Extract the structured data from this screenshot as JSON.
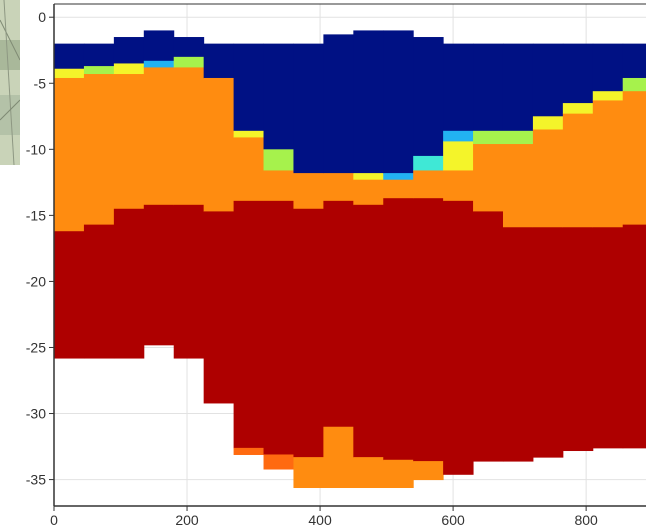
{
  "chart_data": {
    "type": "heatmap",
    "title": "",
    "xlabel": "",
    "ylabel": "",
    "xlim": [
      0,
      890
    ],
    "ylim": [
      -37,
      1
    ],
    "grid": true,
    "x_ticks": [
      0,
      200,
      400,
      600,
      800
    ],
    "y_ticks": [
      0,
      -5,
      -10,
      -15,
      -20,
      -25,
      -30,
      -35
    ],
    "column_width": 45,
    "color_scale": {
      "deep_blue": "#001184",
      "light_blue": "#22B2F2",
      "cyan": "#3FE8D6",
      "green": "#A6F24C",
      "yellow": "#F4F42A",
      "orange": "#FF8C10",
      "dark_orange": "#FF6A10",
      "dark_red": "#AE0000"
    },
    "columns": [
      {
        "x": 0,
        "bands": [
          {
            "from": -2,
            "to": -3.9,
            "color": "deep_blue"
          },
          {
            "from": -3.9,
            "to": -4.6,
            "color": "yellow"
          },
          {
            "from": -4.6,
            "to": -16.2,
            "color": "orange"
          },
          {
            "from": -16.2,
            "to": -25.8,
            "color": "dark_red"
          }
        ]
      },
      {
        "x": 45,
        "bands": [
          {
            "from": -2,
            "to": -3.7,
            "color": "deep_blue"
          },
          {
            "from": -3.7,
            "to": -4.3,
            "color": "green"
          },
          {
            "from": -4.3,
            "to": -15.7,
            "color": "orange"
          },
          {
            "from": -15.7,
            "to": -25.8,
            "color": "dark_red"
          }
        ]
      },
      {
        "x": 90,
        "bands": [
          {
            "from": -1.5,
            "to": -3.5,
            "color": "deep_blue"
          },
          {
            "from": -3.5,
            "to": -4.3,
            "color": "yellow"
          },
          {
            "from": -4.3,
            "to": -14.5,
            "color": "orange"
          },
          {
            "from": -14.5,
            "to": -25.8,
            "color": "dark_red"
          }
        ]
      },
      {
        "x": 135,
        "bands": [
          {
            "from": -1.0,
            "to": -3.3,
            "color": "deep_blue"
          },
          {
            "from": -3.3,
            "to": -3.8,
            "color": "light_blue"
          },
          {
            "from": -3.8,
            "to": -14.2,
            "color": "orange"
          },
          {
            "from": -14.2,
            "to": -24.8,
            "color": "dark_red"
          }
        ]
      },
      {
        "x": 180,
        "bands": [
          {
            "from": -1.5,
            "to": -3.0,
            "color": "deep_blue"
          },
          {
            "from": -3.0,
            "to": -3.8,
            "color": "green"
          },
          {
            "from": -3.8,
            "to": -14.2,
            "color": "orange"
          },
          {
            "from": -14.2,
            "to": -25.8,
            "color": "dark_red"
          }
        ]
      },
      {
        "x": 225,
        "bands": [
          {
            "from": -2,
            "to": -4.6,
            "color": "deep_blue"
          },
          {
            "from": -4.6,
            "to": -14.7,
            "color": "orange"
          },
          {
            "from": -14.7,
            "to": -29.2,
            "color": "dark_red"
          }
        ]
      },
      {
        "x": 270,
        "bands": [
          {
            "from": -2,
            "to": -8.6,
            "color": "deep_blue"
          },
          {
            "from": -8.6,
            "to": -9.1,
            "color": "yellow"
          },
          {
            "from": -9.1,
            "to": -13.9,
            "color": "orange"
          },
          {
            "from": -13.9,
            "to": -32.6,
            "color": "dark_red"
          },
          {
            "from": -32.6,
            "to": -33.1,
            "color": "dark_orange"
          }
        ]
      },
      {
        "x": 315,
        "bands": [
          {
            "from": -2,
            "to": -10.0,
            "color": "deep_blue"
          },
          {
            "from": -10.0,
            "to": -11.6,
            "color": "green"
          },
          {
            "from": -11.6,
            "to": -13.9,
            "color": "orange"
          },
          {
            "from": -13.9,
            "to": -33.1,
            "color": "dark_red"
          },
          {
            "from": -33.1,
            "to": -34.2,
            "color": "dark_orange"
          }
        ]
      },
      {
        "x": 360,
        "bands": [
          {
            "from": -2,
            "to": -11.8,
            "color": "deep_blue"
          },
          {
            "from": -11.8,
            "to": -14.5,
            "color": "orange"
          },
          {
            "from": -14.5,
            "to": -33.3,
            "color": "dark_red"
          },
          {
            "from": -33.3,
            "to": -35.6,
            "color": "orange"
          }
        ]
      },
      {
        "x": 405,
        "bands": [
          {
            "from": -1.3,
            "to": -11.8,
            "color": "deep_blue"
          },
          {
            "from": -11.8,
            "to": -13.9,
            "color": "orange"
          },
          {
            "from": -13.9,
            "to": -31.0,
            "color": "dark_red"
          },
          {
            "from": -31.0,
            "to": -35.6,
            "color": "orange"
          }
        ]
      },
      {
        "x": 450,
        "bands": [
          {
            "from": -1.0,
            "to": -11.8,
            "color": "deep_blue"
          },
          {
            "from": -11.8,
            "to": -12.3,
            "color": "yellow"
          },
          {
            "from": -12.3,
            "to": -14.2,
            "color": "orange"
          },
          {
            "from": -14.2,
            "to": -33.3,
            "color": "dark_red"
          },
          {
            "from": -33.3,
            "to": -35.6,
            "color": "orange"
          }
        ]
      },
      {
        "x": 495,
        "bands": [
          {
            "from": -1.0,
            "to": -11.8,
            "color": "deep_blue"
          },
          {
            "from": -11.8,
            "to": -12.3,
            "color": "light_blue"
          },
          {
            "from": -12.3,
            "to": -13.7,
            "color": "orange"
          },
          {
            "from": -13.7,
            "to": -33.5,
            "color": "dark_red"
          },
          {
            "from": -33.5,
            "to": -35.6,
            "color": "orange"
          }
        ]
      },
      {
        "x": 540,
        "bands": [
          {
            "from": -1.5,
            "to": -10.5,
            "color": "deep_blue"
          },
          {
            "from": -10.5,
            "to": -11.6,
            "color": "cyan"
          },
          {
            "from": -11.6,
            "to": -13.7,
            "color": "orange"
          },
          {
            "from": -13.7,
            "to": -33.6,
            "color": "dark_red"
          },
          {
            "from": -33.6,
            "to": -35.0,
            "color": "orange"
          }
        ]
      },
      {
        "x": 585,
        "bands": [
          {
            "from": -2,
            "to": -8.6,
            "color": "deep_blue"
          },
          {
            "from": -8.6,
            "to": -9.4,
            "color": "light_blue"
          },
          {
            "from": -9.4,
            "to": -11.6,
            "color": "yellow"
          },
          {
            "from": -11.6,
            "to": -13.9,
            "color": "orange"
          },
          {
            "from": -13.9,
            "to": -34.6,
            "color": "dark_red"
          }
        ]
      },
      {
        "x": 630,
        "bands": [
          {
            "from": -2,
            "to": -8.6,
            "color": "deep_blue"
          },
          {
            "from": -8.6,
            "to": -9.6,
            "color": "green"
          },
          {
            "from": -9.6,
            "to": -14.7,
            "color": "orange"
          },
          {
            "from": -14.7,
            "to": -33.6,
            "color": "dark_red"
          }
        ]
      },
      {
        "x": 675,
        "bands": [
          {
            "from": -2,
            "to": -8.6,
            "color": "deep_blue"
          },
          {
            "from": -8.6,
            "to": -9.6,
            "color": "green"
          },
          {
            "from": -9.6,
            "to": -15.9,
            "color": "orange"
          },
          {
            "from": -15.9,
            "to": -33.6,
            "color": "dark_red"
          }
        ]
      },
      {
        "x": 720,
        "bands": [
          {
            "from": -2,
            "to": -7.5,
            "color": "deep_blue"
          },
          {
            "from": -7.5,
            "to": -8.5,
            "color": "yellow"
          },
          {
            "from": -8.5,
            "to": -15.9,
            "color": "orange"
          },
          {
            "from": -15.9,
            "to": -33.3,
            "color": "dark_red"
          }
        ]
      },
      {
        "x": 765,
        "bands": [
          {
            "from": -2,
            "to": -6.5,
            "color": "deep_blue"
          },
          {
            "from": -6.5,
            "to": -7.3,
            "color": "yellow"
          },
          {
            "from": -7.3,
            "to": -15.9,
            "color": "orange"
          },
          {
            "from": -15.9,
            "to": -32.8,
            "color": "dark_red"
          }
        ]
      },
      {
        "x": 810,
        "bands": [
          {
            "from": -2,
            "to": -5.6,
            "color": "deep_blue"
          },
          {
            "from": -5.6,
            "to": -6.3,
            "color": "yellow"
          },
          {
            "from": -6.3,
            "to": -15.9,
            "color": "orange"
          },
          {
            "from": -15.9,
            "to": -32.6,
            "color": "dark_red"
          }
        ]
      },
      {
        "x": 855,
        "bands": [
          {
            "from": -2,
            "to": -4.6,
            "color": "deep_blue"
          },
          {
            "from": -4.6,
            "to": -5.6,
            "color": "green"
          },
          {
            "from": -5.6,
            "to": -15.7,
            "color": "orange"
          },
          {
            "from": -15.7,
            "to": -32.6,
            "color": "dark_red"
          }
        ]
      }
    ]
  }
}
